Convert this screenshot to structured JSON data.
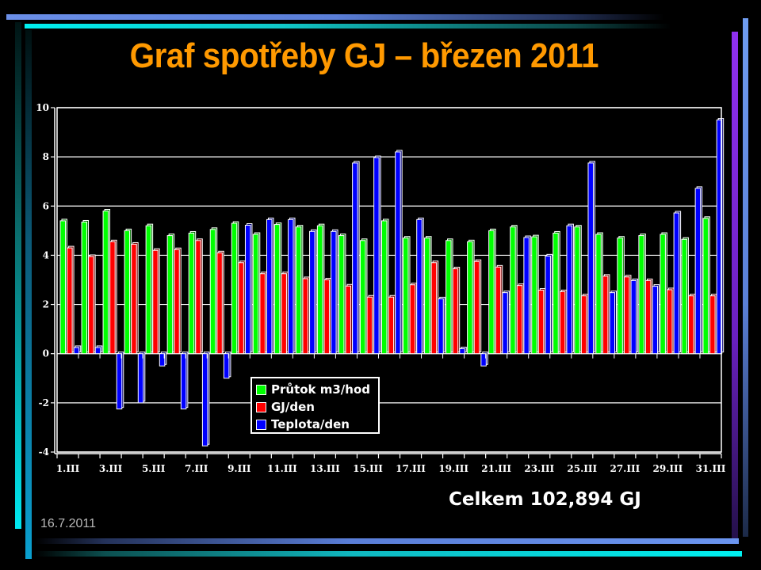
{
  "slide": {
    "title": "Graf spotřeby GJ – březen 2011",
    "total": "Celkem 102,894 GJ",
    "date": "16.7.2011"
  },
  "colors": {
    "title": "#ff9900",
    "series_green": "#00ff00",
    "series_red": "#ff0000",
    "series_blue": "#0000ff"
  },
  "chart_data": {
    "type": "bar",
    "title": "Graf spotřeby GJ – březen 2011",
    "xlabel": "",
    "ylabel": "",
    "ylim": [
      -4,
      10
    ],
    "yticks": [
      -4,
      -2,
      0,
      2,
      4,
      6,
      8,
      10
    ],
    "grid": true,
    "legend_position": "bottom-left-inside",
    "categories": [
      "1.III",
      "2.III",
      "3.III",
      "4.III",
      "5.III",
      "6.III",
      "7.III",
      "8.III",
      "9.III",
      "10.III",
      "11.III",
      "12.III",
      "13.III",
      "14.III",
      "15.III",
      "16.III",
      "17.III",
      "18.III",
      "19.III",
      "20.III",
      "21.III",
      "22.III",
      "23.III",
      "24.III",
      "25.III",
      "26.III",
      "27.III",
      "28.III",
      "29.III",
      "30.III",
      "31.III"
    ],
    "tick_labels": [
      "1.III",
      "3.III",
      "5.III",
      "7.III",
      "9.III",
      "11.III",
      "13.III",
      "15.III",
      "17.III",
      "19.III",
      "21.III",
      "23.III",
      "25.III",
      "27.III",
      "29.III",
      "31.III"
    ],
    "series": [
      {
        "name": "Průtok m3/hod",
        "color": "#00ff00",
        "values": [
          5.4,
          5.35,
          5.8,
          5.0,
          5.2,
          4.8,
          4.9,
          5.05,
          5.3,
          4.85,
          5.25,
          5.15,
          5.2,
          4.8,
          4.6,
          5.4,
          4.7,
          4.7,
          4.6,
          4.55,
          5.0,
          5.15,
          4.75,
          4.9,
          5.15,
          4.85,
          4.7,
          4.8,
          4.85,
          4.65,
          5.5
        ]
      },
      {
        "name": "GJ/den",
        "color": "#ff0000",
        "values": [
          4.3,
          3.95,
          4.55,
          4.45,
          4.2,
          4.23,
          4.6,
          4.1,
          3.7,
          3.25,
          3.25,
          3.05,
          3.0,
          2.75,
          2.3,
          2.3,
          2.8,
          3.7,
          3.45,
          3.75,
          3.52,
          2.77,
          2.58,
          2.52,
          2.35,
          3.15,
          3.12,
          2.97,
          2.6,
          2.35,
          2.35
        ]
      },
      {
        "name": "Teplota/den",
        "color": "#0000ff",
        "values": [
          0.25,
          0.25,
          -2.25,
          -2.0,
          -0.5,
          -2.25,
          -3.75,
          -1.0,
          5.22,
          5.45,
          5.45,
          4.97,
          4.97,
          7.75,
          7.97,
          8.2,
          5.45,
          2.23,
          0.2,
          -0.5,
          2.48,
          4.72,
          3.97,
          5.2,
          7.75,
          2.48,
          2.97,
          2.74,
          5.72,
          6.72,
          9.5
        ]
      }
    ]
  }
}
